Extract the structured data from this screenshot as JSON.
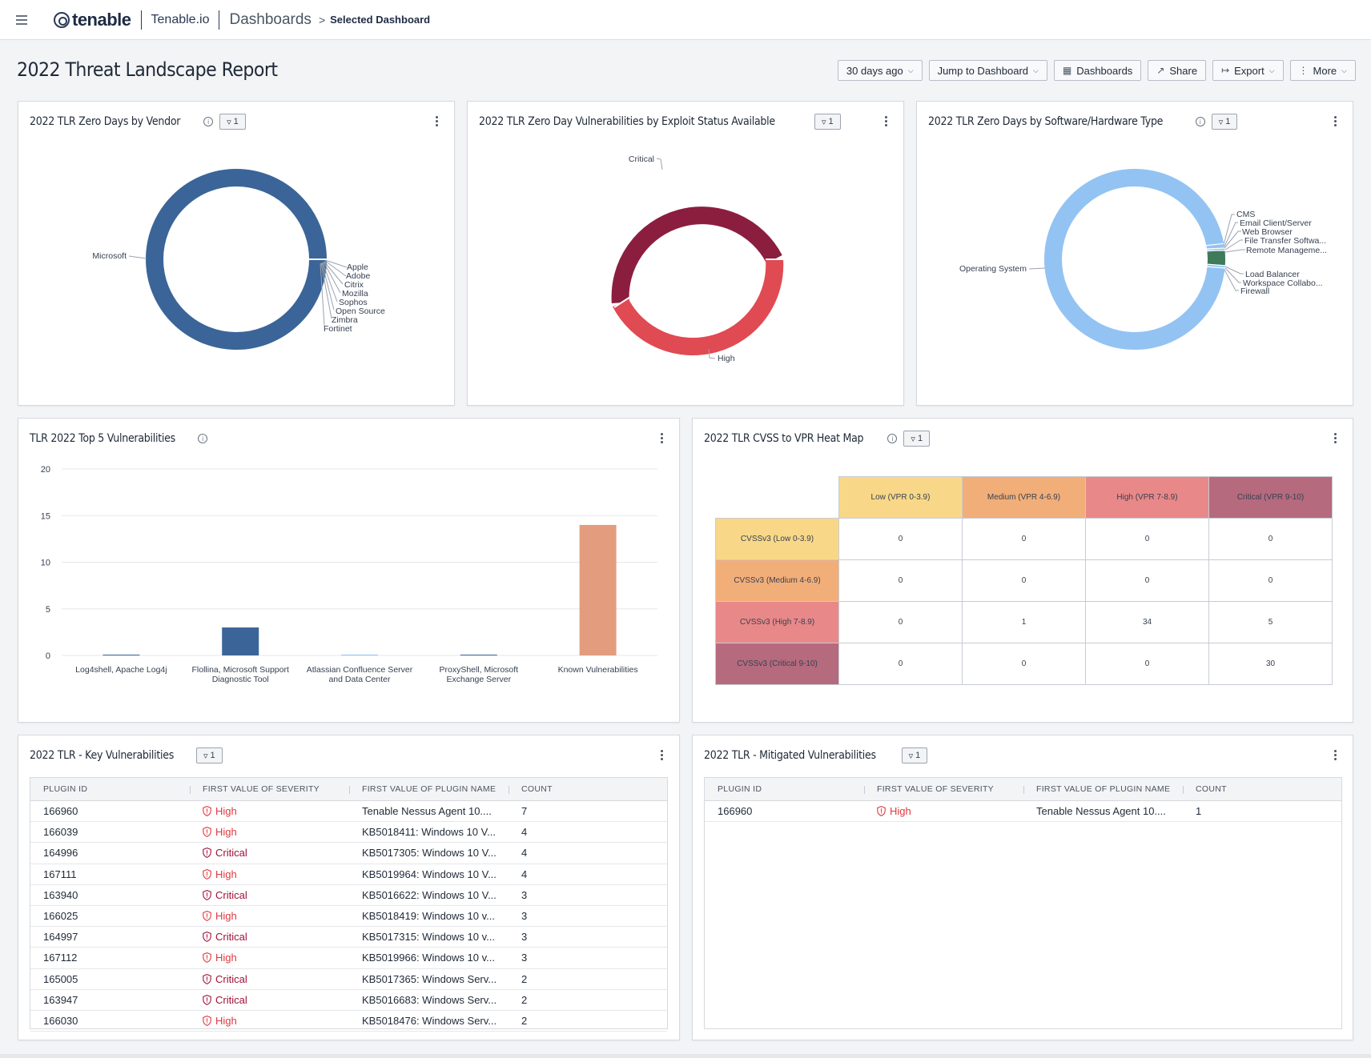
{
  "topbar": {
    "logo_text": "tenable",
    "product": "Tenable.io",
    "breadcrumb_main": "Dashboards",
    "breadcrumb_arrow": ">",
    "breadcrumb_sub": "Selected Dashboard"
  },
  "page": {
    "title": "2022 Threat Landscape Report",
    "actions": {
      "range": "30 days ago",
      "jump": "Jump to Dashboard",
      "dashboards": "Dashboards",
      "share": "Share",
      "export": "Export",
      "more": "More"
    }
  },
  "widgets": {
    "vendor": {
      "title": "2022 TLR Zero Days by Vendor",
      "filter_count": "1",
      "color": "#3b6598",
      "labels": [
        "Microsoft",
        "Apple",
        "Adobe",
        "Citrix",
        "Mozilla",
        "Sophos",
        "Open Source",
        "Zimbra",
        "Fortinet"
      ]
    },
    "exploit": {
      "title": "2022 TLR Zero Day Vulnerabilities by Exploit Status Available",
      "filter_count": "1",
      "labels": [
        "Critical",
        "High"
      ],
      "colors": {
        "critical": "#8b1e3f",
        "high": "#e04a52"
      }
    },
    "software": {
      "title": "2022 TLR Zero Days by Software/Hardware Type",
      "filter_count": "1",
      "color_main": "#93c3f2",
      "color_accent": "#3f7a5a",
      "labels": [
        "Operating System",
        "CMS",
        "Email Client/Server",
        "Web Browser",
        "File Transfer Softwa...",
        "Remote Manageme...",
        "Load Balancer",
        "Workspace Collabo...",
        "Firewall"
      ]
    },
    "top5": {
      "title": "TLR 2022 Top 5 Vulnerabilities",
      "chart_data": {
        "type": "bar",
        "categories": [
          "Log4shell, Apache Log4j",
          "Flollina, Microsoft Support Diagnostic Tool",
          "Atlassian Confluence Server and Data Center",
          "ProxyShell, Microsoft Exchange Server",
          "Known Vulnerabilities"
        ],
        "category_lines": [
          [
            "Log4shell, Apache Log4j"
          ],
          [
            "Flollina, Microsoft Support",
            "Diagnostic Tool"
          ],
          [
            "Atlassian Confluence Server",
            "and Data Center"
          ],
          [
            "ProxyShell, Microsoft",
            "Exchange Server"
          ],
          [
            "Known Vulnerabilities"
          ]
        ],
        "values": [
          0,
          3,
          0,
          0,
          14
        ],
        "colors": [
          "#3b6598",
          "#3b6598",
          "#93c3f2",
          "#3b6598",
          "#e39d7e"
        ],
        "yticks": [
          0,
          5,
          10,
          15,
          20
        ],
        "ylim": [
          0,
          20
        ],
        "grid": true
      }
    },
    "heatmap": {
      "title": "2022 TLR CVSS to VPR Heat Map",
      "filter_count": "1",
      "columns": [
        "Low (VPR 0-3.9)",
        "Medium (VPR 4-6.9)",
        "High (VPR 7-8.9)",
        "Critical (VPR 9-10)"
      ],
      "rows": [
        {
          "label": "CVSSv3 (Low 0-3.9)",
          "values": [
            "0",
            "0",
            "0",
            "0"
          ]
        },
        {
          "label": "CVSSv3 (Medium 4-6.9)",
          "values": [
            "0",
            "0",
            "0",
            "0"
          ]
        },
        {
          "label": "CVSSv3 (High 7-8.9)",
          "values": [
            "0",
            "1",
            "34",
            "5"
          ]
        },
        {
          "label": "CVSSv3 (Critical 9-10)",
          "values": [
            "0",
            "0",
            "0",
            "30"
          ]
        }
      ],
      "colors": [
        "#f8d888",
        "#f2ae79",
        "#e98889",
        "#b56a7e"
      ]
    },
    "key_vulns": {
      "title": "2022 TLR - Key Vulnerabilities",
      "filter_count": "1",
      "columns": [
        "PLUGIN ID",
        "FIRST VALUE OF SEVERITY",
        "FIRST VALUE OF PLUGIN NAME",
        "COUNT"
      ],
      "rows": [
        {
          "id": "166960",
          "severity": "High",
          "name": "Tenable Nessus Agent 10....",
          "count": "7"
        },
        {
          "id": "166039",
          "severity": "High",
          "name": "KB5018411: Windows 10 V...",
          "count": "4"
        },
        {
          "id": "164996",
          "severity": "Critical",
          "name": "KB5017305: Windows 10 V...",
          "count": "4"
        },
        {
          "id": "167111",
          "severity": "High",
          "name": "KB5019964: Windows 10 V...",
          "count": "4"
        },
        {
          "id": "163940",
          "severity": "Critical",
          "name": "KB5016622: Windows 10 V...",
          "count": "3"
        },
        {
          "id": "166025",
          "severity": "High",
          "name": "KB5018419: Windows 10 v...",
          "count": "3"
        },
        {
          "id": "164997",
          "severity": "Critical",
          "name": "KB5017315: Windows 10 v...",
          "count": "3"
        },
        {
          "id": "167112",
          "severity": "High",
          "name": "KB5019966: Windows 10 v...",
          "count": "3"
        },
        {
          "id": "165005",
          "severity": "Critical",
          "name": "KB5017365: Windows Serv...",
          "count": "2"
        },
        {
          "id": "163947",
          "severity": "Critical",
          "name": "KB5016683: Windows Serv...",
          "count": "2"
        },
        {
          "id": "166030",
          "severity": "High",
          "name": "KB5018476: Windows Serv...",
          "count": "2"
        }
      ]
    },
    "mitigated": {
      "title": "2022 TLR - Mitigated Vulnerabilities",
      "filter_count": "1",
      "columns": [
        "PLUGIN ID",
        "FIRST VALUE OF SEVERITY",
        "FIRST VALUE OF PLUGIN NAME",
        "COUNT"
      ],
      "rows": [
        {
          "id": "166960",
          "severity": "High",
          "name": "Tenable Nessus Agent 10....",
          "count": "1"
        }
      ]
    }
  }
}
